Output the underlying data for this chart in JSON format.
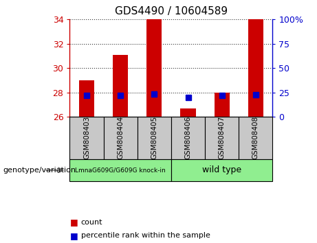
{
  "title": "GDS4490 / 10604589",
  "samples": [
    "GSM808403",
    "GSM808404",
    "GSM808405",
    "GSM808406",
    "GSM808407",
    "GSM808408"
  ],
  "count_values": [
    29.0,
    31.1,
    34.0,
    26.7,
    28.0,
    34.0
  ],
  "percentile_values": [
    22.0,
    22.0,
    23.0,
    19.5,
    22.0,
    22.5
  ],
  "baseline": 26.0,
  "ylim_left": [
    26.0,
    34.0
  ],
  "ylim_right": [
    0,
    100
  ],
  "yticks_left": [
    26,
    28,
    30,
    32,
    34
  ],
  "yticks_right": [
    0,
    25,
    50,
    75,
    100
  ],
  "ytick_labels_right": [
    "0",
    "25",
    "50",
    "75",
    "100%"
  ],
  "bar_color": "#CC0000",
  "percentile_color": "#0000CC",
  "group1_label": "LmnaG609G/G609G knock-in",
  "group2_label": "wild type",
  "group1_color": "#90EE90",
  "group2_color": "#90EE90",
  "sample_box_color": "#C8C8C8",
  "legend_count_label": "count",
  "legend_percentile_label": "percentile rank within the sample",
  "genotype_label": "genotype/variation",
  "left_axis_color": "#CC0000",
  "right_axis_color": "#0000CC",
  "background_color": "#ffffff",
  "bar_width": 0.45,
  "percentile_marker_size": 6
}
